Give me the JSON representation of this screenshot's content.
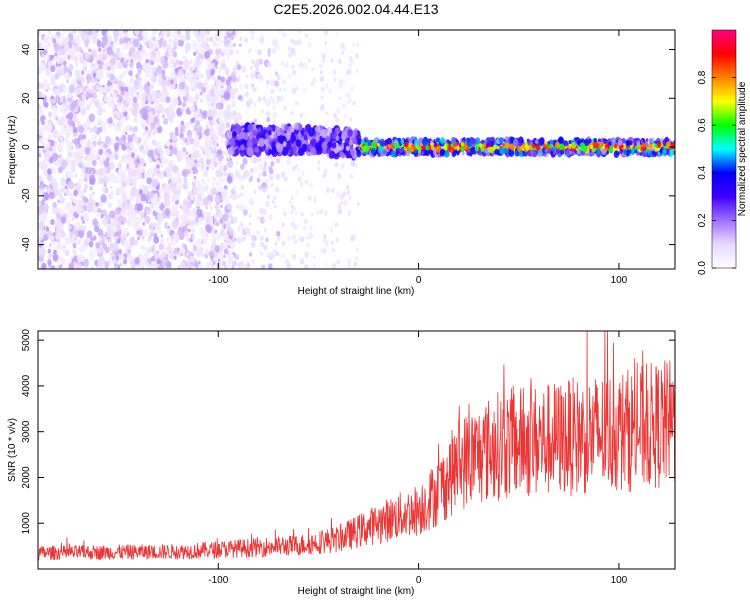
{
  "title": "C2E5.2026.002.04.44.E13",
  "chart_data": [
    {
      "type": "heatmap",
      "name": "spectrogram",
      "xlabel": "Height of straight line (km)",
      "ylabel": "Frequency (Hz)",
      "xlim": [
        -190,
        128
      ],
      "ylim": [
        -50,
        48
      ],
      "xticks": [
        -100,
        0,
        100
      ],
      "xtick_labels": [
        "-100",
        "0",
        "100"
      ],
      "yticks": [
        40,
        20,
        0,
        -20,
        -40
      ],
      "ytick_labels": [
        "40",
        "20",
        "0",
        "-20",
        "-40"
      ],
      "colorbar": {
        "label": "Normalized spectral amplitude",
        "range": [
          0,
          1
        ],
        "ticks": [
          0.0,
          0.2,
          0.4,
          0.6,
          0.8
        ],
        "tick_labels": [
          "0.0",
          "0.2",
          "0.4",
          "0.6",
          "0.8"
        ],
        "colors": [
          "#ffffff",
          "#e8d8ff",
          "#a070ff",
          "#4000ff",
          "#0000ff",
          "#00ffff",
          "#00ff00",
          "#ffff00",
          "#ff8000",
          "#ff0000",
          "#ff0080"
        ]
      },
      "description_points": [
        {
          "x_range": [
            -190,
            -95
          ],
          "pattern": "broadband purple noise spanning -50 to 48 Hz"
        },
        {
          "x_range": [
            -95,
            -30
          ],
          "pattern": "scattered faint noise plus bright blob near 0 to 8 Hz"
        },
        {
          "x_range": [
            -30,
            128
          ],
          "pattern": "narrow band centred at 0 Hz, amplitude up to ~0.9"
        }
      ]
    },
    {
      "type": "line",
      "name": "snr",
      "xlabel": "Height of straight line (km)",
      "ylabel": "SNR (10 * v/v)",
      "xlim": [
        -190,
        128
      ],
      "ylim": [
        0,
        5200
      ],
      "xticks": [
        -100,
        0,
        100
      ],
      "xtick_labels": [
        "-100",
        "0",
        "100"
      ],
      "yticks": [
        1000,
        2000,
        3000,
        4000,
        5000
      ],
      "ytick_labels": [
        "1000",
        "2000",
        "3000",
        "4000",
        "5000"
      ],
      "color": "#ee3333",
      "trend": [
        {
          "x": -190,
          "y": 350
        },
        {
          "x": -120,
          "y": 380
        },
        {
          "x": -90,
          "y": 450
        },
        {
          "x": -60,
          "y": 520
        },
        {
          "x": -40,
          "y": 650
        },
        {
          "x": -20,
          "y": 1000
        },
        {
          "x": 0,
          "y": 1300
        },
        {
          "x": 10,
          "y": 1700
        },
        {
          "x": 20,
          "y": 2300
        },
        {
          "x": 40,
          "y": 2700
        },
        {
          "x": 60,
          "y": 2800
        },
        {
          "x": 80,
          "y": 2900
        },
        {
          "x": 100,
          "y": 3000
        },
        {
          "x": 128,
          "y": 3200
        }
      ]
    }
  ]
}
